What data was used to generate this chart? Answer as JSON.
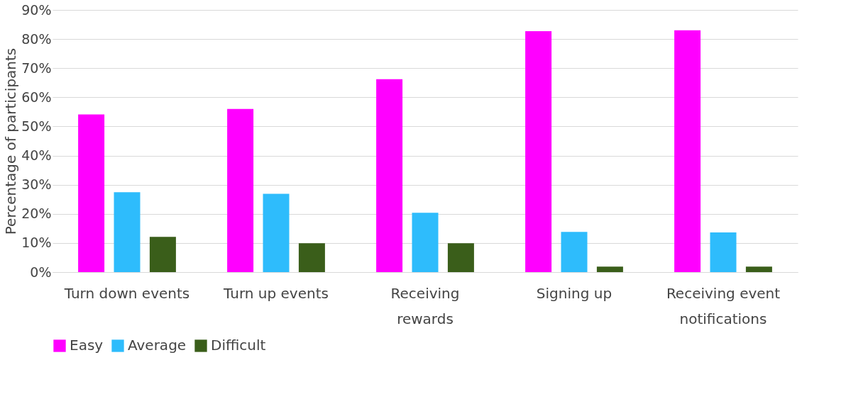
{
  "chart_data": {
    "type": "bar",
    "ylabel": "Percentage of participants",
    "categories": [
      "Turn down events",
      "Turn up events",
      "Receiving rewards",
      "Signing up",
      "Receiving event notifications"
    ],
    "series": [
      {
        "name": "Easy",
        "color": "#ff00ff",
        "values": [
          54.1,
          56.0,
          66.2,
          82.7,
          83.0
        ]
      },
      {
        "name": "Average",
        "color": "#2ebcfc",
        "values": [
          27.4,
          26.9,
          20.4,
          13.8,
          13.6
        ]
      },
      {
        "name": "Difficult",
        "color": "#3a5e1a",
        "values": [
          12.1,
          9.9,
          9.9,
          1.9,
          1.9
        ]
      }
    ],
    "ylim": [
      0,
      90
    ],
    "yticks": [
      {
        "value": 0,
        "label": "0%"
      },
      {
        "value": 10,
        "label": "10%"
      },
      {
        "value": 20,
        "label": "20%"
      },
      {
        "value": 30,
        "label": "30%"
      },
      {
        "value": 40,
        "label": "40%"
      },
      {
        "value": 50,
        "label": "50%"
      },
      {
        "value": 60,
        "label": "60%"
      },
      {
        "value": 70,
        "label": "70%"
      },
      {
        "value": 80,
        "label": "80%"
      },
      {
        "value": 90,
        "label": "90%"
      }
    ],
    "grid": "y",
    "legend": "bottom"
  }
}
